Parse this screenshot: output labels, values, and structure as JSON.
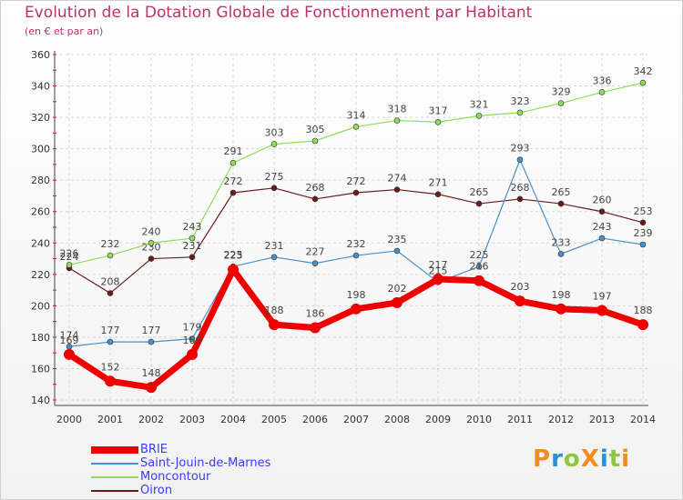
{
  "title": "Evolution de la Dotation Globale de Fonctionnement par Habitant",
  "subtitle": "(en € et par an)",
  "logo": {
    "text": "ProXiti",
    "letters": [
      {
        "ch": "P",
        "color": "#f28c1e"
      },
      {
        "ch": "r",
        "color": "#2a8fd6"
      },
      {
        "ch": "o",
        "color": "#8dc63f"
      },
      {
        "ch": "X",
        "color": "#f28c1e"
      },
      {
        "ch": "i",
        "color": "#2a8fd6"
      },
      {
        "ch": "t",
        "color": "#8dc63f"
      },
      {
        "ch": "i",
        "color": "#f28c1e"
      }
    ]
  },
  "chart_data": {
    "type": "line",
    "x": [
      2000,
      2001,
      2002,
      2003,
      2004,
      2005,
      2006,
      2007,
      2008,
      2009,
      2010,
      2011,
      2012,
      2013,
      2014
    ],
    "ylim": [
      140,
      360
    ],
    "yticks": [
      140,
      160,
      180,
      200,
      220,
      240,
      260,
      280,
      300,
      320,
      340,
      360
    ],
    "grid": true,
    "legend_position": "bottom-left",
    "series": [
      {
        "name": "Oiron",
        "color": "#6b1a1a",
        "width": 1.2,
        "values": [
          224,
          208,
          230,
          231,
          272,
          275,
          268,
          272,
          274,
          271,
          265,
          268,
          265,
          260,
          253
        ]
      },
      {
        "name": "Moncontour",
        "color": "#8fdc5a",
        "width": 1.2,
        "values": [
          226,
          232,
          240,
          243,
          291,
          303,
          305,
          314,
          318,
          317,
          321,
          323,
          329,
          336,
          342
        ]
      },
      {
        "name": "Saint-Jouin-de-Marnes",
        "color": "#4a90c8",
        "width": 1.2,
        "values": [
          174,
          177,
          177,
          179,
          225,
          231,
          227,
          232,
          235,
          215,
          225,
          293,
          233,
          243,
          239
        ]
      },
      {
        "name": "BRIE",
        "color": "#ee0000",
        "width": 7,
        "values": [
          169,
          152,
          148,
          169,
          223,
          188,
          186,
          198,
          202,
          217,
          216,
          203,
          198,
          197,
          188
        ]
      }
    ],
    "legend_order": [
      "BRIE",
      "Saint-Jouin-de-Marnes",
      "Moncontour",
      "Oiron"
    ]
  }
}
